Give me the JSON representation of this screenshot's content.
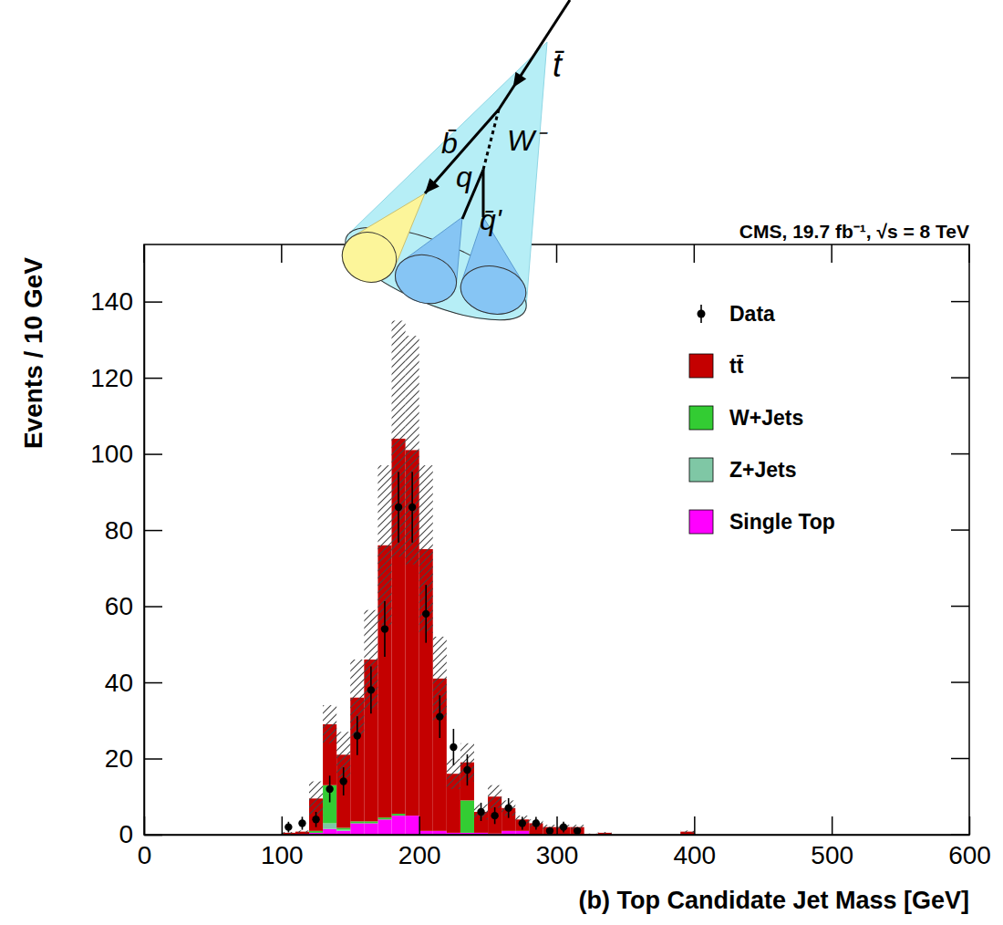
{
  "chart_data": {
    "type": "histogram",
    "title": "CMS, 19.7 fb⁻¹, √s = 8 TeV",
    "x_label": "(b) Top Candidate Jet Mass [GeV]",
    "y_label": "Events / 10 GeV",
    "annotations": [
      "t̄",
      "b̄",
      "W⁻",
      "q",
      "q̄'"
    ],
    "xlim": [
      0,
      600
    ],
    "xticks": [
      0,
      100,
      200,
      300,
      400,
      500,
      600
    ],
    "ylim": [
      0,
      155
    ],
    "yticks": [
      0,
      20,
      40,
      60,
      80,
      100,
      120,
      140
    ],
    "stacked": true,
    "legend": "top-right",
    "bins": [
      100,
      110,
      120,
      130,
      140,
      150,
      160,
      170,
      180,
      190,
      200,
      210,
      220,
      230,
      240,
      250,
      260,
      270,
      280,
      290,
      300,
      310,
      320,
      330,
      340,
      350,
      360,
      370,
      380,
      390,
      400
    ],
    "series": [
      {
        "name": "Data",
        "type": "scatter",
        "marker": "circle",
        "color": "#000000",
        "values": [
          2,
          3,
          4,
          12,
          14,
          26,
          38,
          54,
          86,
          86,
          58,
          31,
          23,
          17,
          6,
          5,
          7,
          3,
          3,
          1,
          2,
          1,
          null,
          null,
          null,
          null,
          null,
          null,
          null,
          null
        ],
        "errors": [
          1.4,
          1.7,
          2,
          3.5,
          3.7,
          5.1,
          6.2,
          7.3,
          9.3,
          9.3,
          7.6,
          5.6,
          4.8,
          4.1,
          2.4,
          2.2,
          2.6,
          1.7,
          1.7,
          1,
          1.4,
          1,
          null,
          null,
          null,
          null,
          null,
          null,
          null,
          null
        ]
      },
      {
        "name": "tt̄",
        "type": "bar",
        "color": "#c40000",
        "values": [
          0.5,
          0.6,
          8.5,
          16,
          19.2,
          32.5,
          42.5,
          71.5,
          98.5,
          96,
          74,
          40,
          15.5,
          10,
          5.5,
          9.7,
          6,
          3,
          3,
          2,
          2,
          2,
          0.2,
          0.5,
          0,
          0,
          0,
          0,
          0,
          0.8
        ]
      },
      {
        "name": "W+Jets",
        "type": "bar",
        "color": "#33cc33",
        "values": [
          0,
          0,
          0.5,
          10,
          0.5,
          0.5,
          0.5,
          0.5,
          0.5,
          0,
          0,
          0,
          0,
          8.5,
          0,
          0,
          0,
          0,
          0,
          0,
          0,
          0,
          0,
          0,
          0,
          0,
          0,
          0,
          0,
          0
        ]
      },
      {
        "name": "Z+Jets",
        "type": "bar",
        "color": "#7fc7a5",
        "values": [
          0,
          0,
          0,
          1.5,
          0.3,
          0,
          0,
          0,
          0,
          0,
          0,
          0,
          0,
          0,
          0,
          0,
          0,
          0,
          0,
          0,
          0,
          0,
          0,
          0,
          0,
          0,
          0,
          0,
          0,
          0
        ]
      },
      {
        "name": "Single Top",
        "type": "bar",
        "color": "#ff00ff",
        "values": [
          0,
          0.2,
          0.5,
          1.5,
          1,
          3,
          3,
          4,
          5,
          5,
          1,
          1,
          0.5,
          0.5,
          0.5,
          0.3,
          1,
          1,
          0,
          0,
          0,
          0,
          0,
          0,
          0,
          0,
          0,
          0,
          0,
          0
        ]
      }
    ],
    "uncertainty": [
      0.2,
      0.3,
      4.5,
      5,
      6,
      10,
      13,
      21,
      31,
      30,
      22,
      11,
      4,
      5,
      2,
      3,
      2,
      1,
      1,
      0.6,
      0.6,
      0.6,
      0.1,
      0.2,
      0,
      0,
      0,
      0,
      0,
      0.3
    ]
  }
}
